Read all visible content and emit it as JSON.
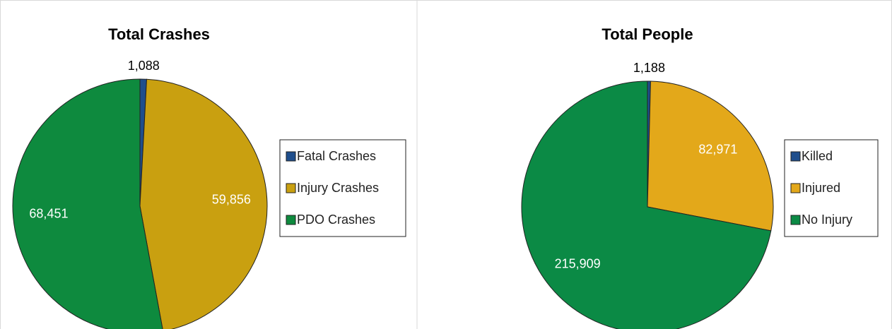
{
  "chart_data": [
    {
      "type": "pie",
      "title": "Total Crashes",
      "categories": [
        "Fatal Crashes",
        "Injury Crashes",
        "PDO Crashes"
      ],
      "values": [
        1088,
        59856,
        68451
      ],
      "value_labels": [
        "1,088",
        "59,856",
        "68,451"
      ],
      "colors": [
        "#1f4e8c",
        "#c9a010",
        "#0e8a3e"
      ],
      "legend": "right"
    },
    {
      "type": "pie",
      "title": "Total People",
      "categories": [
        "Killed",
        "Injured",
        "No Injury"
      ],
      "values": [
        1188,
        82971,
        215909
      ],
      "value_labels": [
        "1,188",
        "82,971",
        "215,909"
      ],
      "colors": [
        "#1f4e8c",
        "#e3a81a",
        "#0b8a45"
      ],
      "legend": "right"
    }
  ]
}
